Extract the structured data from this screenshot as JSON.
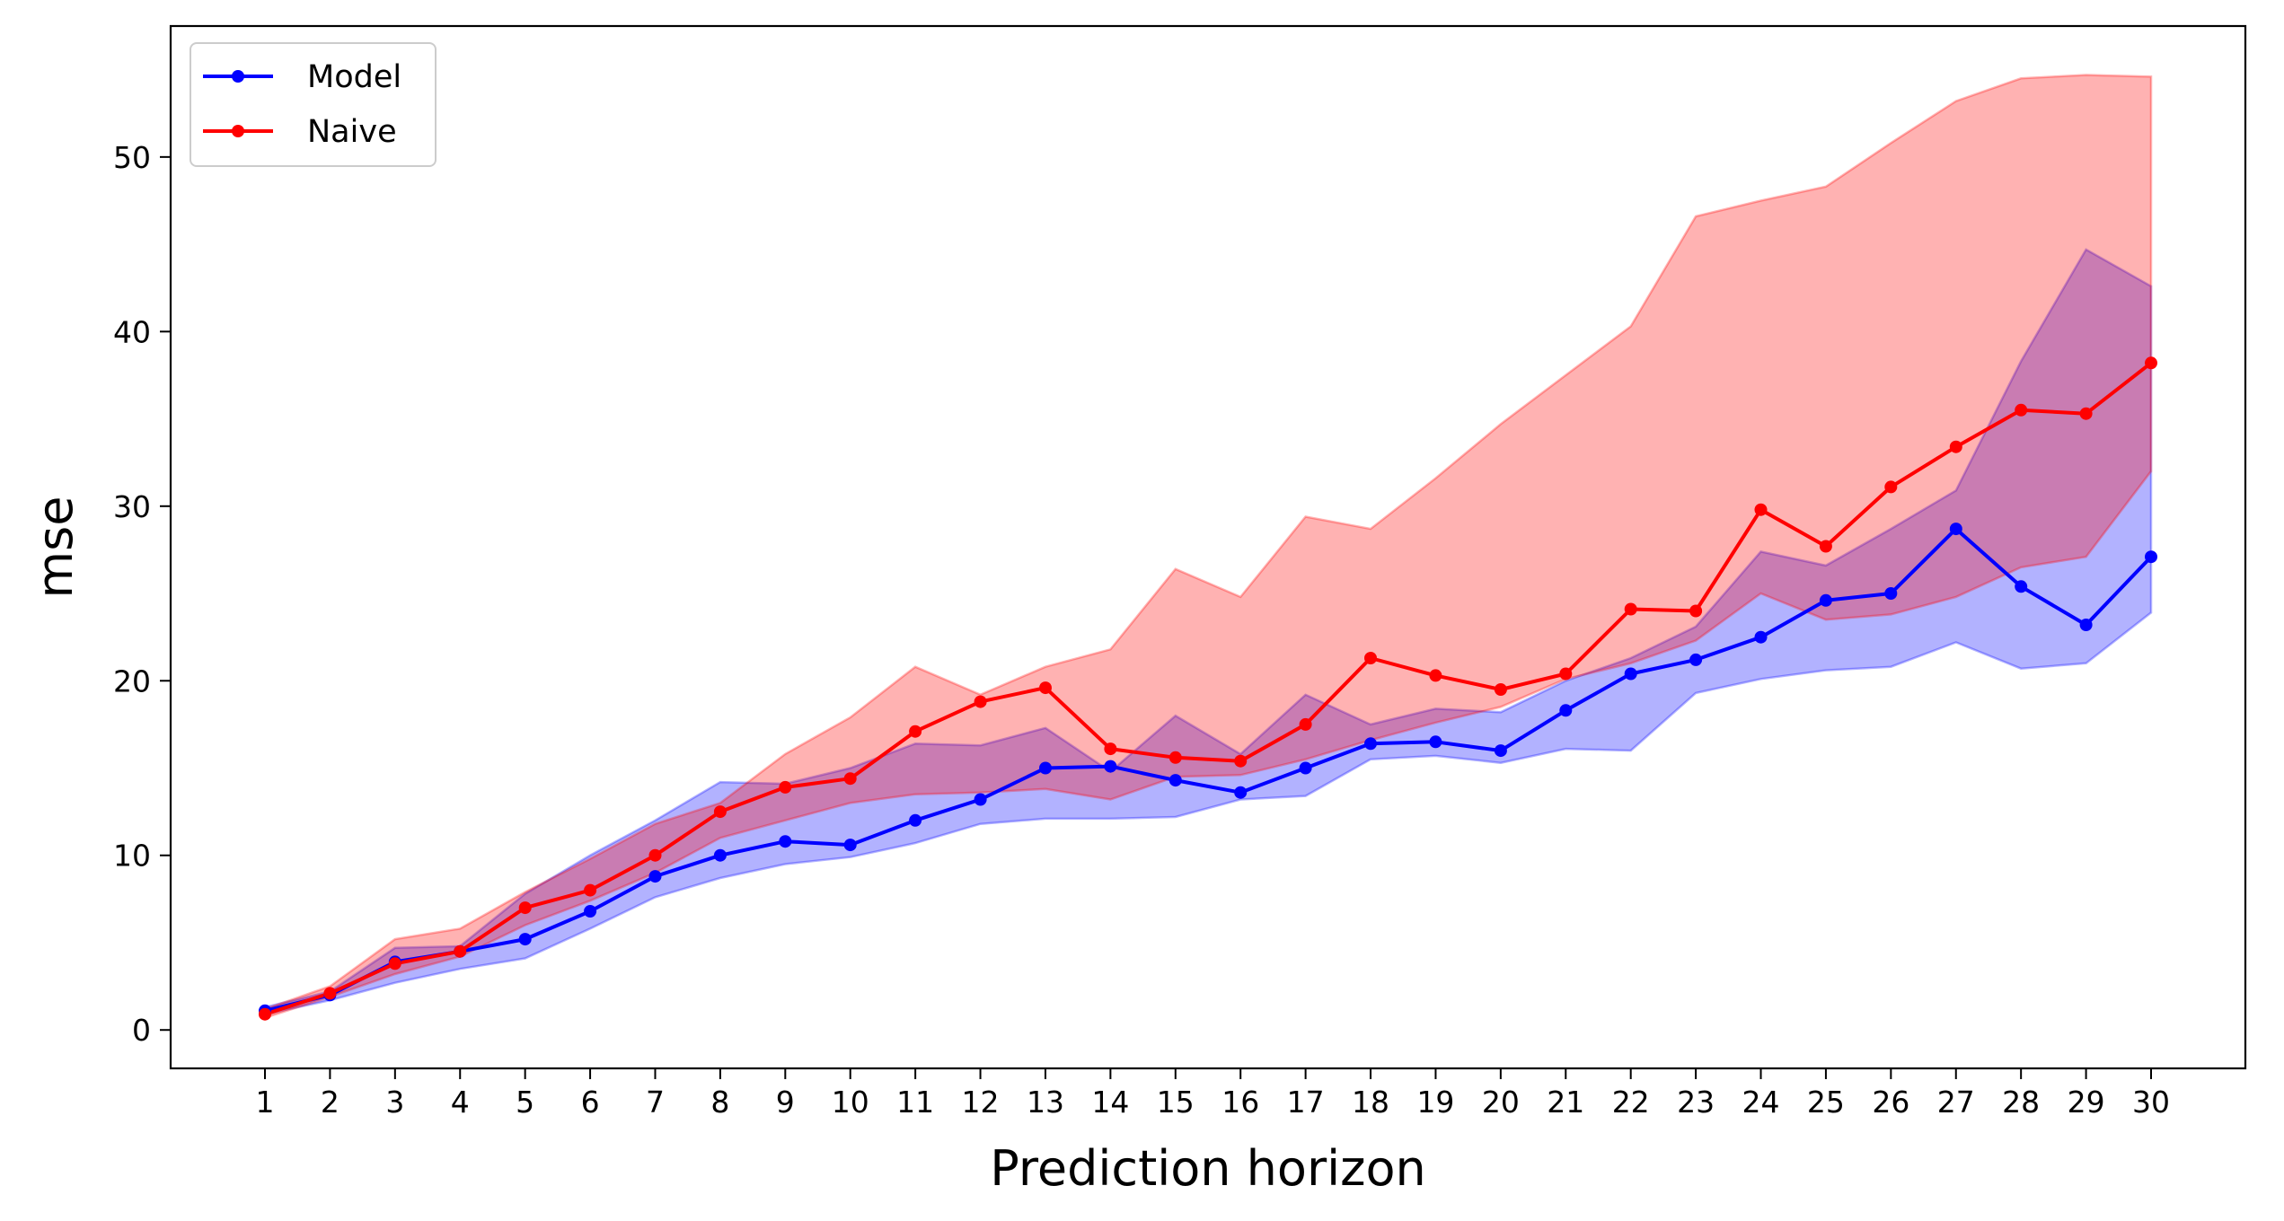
{
  "chart_data": {
    "type": "line",
    "title": "",
    "xlabel": "Prediction horizon",
    "ylabel": "mse",
    "x": [
      1,
      2,
      3,
      4,
      5,
      6,
      7,
      8,
      9,
      10,
      11,
      12,
      13,
      14,
      15,
      16,
      17,
      18,
      19,
      20,
      21,
      22,
      23,
      24,
      25,
      26,
      27,
      28,
      29,
      30
    ],
    "xlim": [
      -0.45,
      31.45
    ],
    "ylim": [
      -2.2,
      57.5
    ],
    "yticks": [
      0,
      10,
      20,
      30,
      40,
      50
    ],
    "grid": false,
    "legend_position": "top-left",
    "series": [
      {
        "name": "Model",
        "color": "#0000ff",
        "values": [
          1.1,
          2.0,
          3.9,
          4.5,
          5.2,
          6.8,
          8.8,
          10.0,
          10.8,
          10.6,
          12.0,
          13.2,
          15.0,
          15.1,
          14.3,
          13.6,
          15.0,
          16.4,
          16.5,
          16.0,
          18.3,
          20.4,
          21.2,
          22.5,
          24.6,
          25.0,
          28.7,
          25.4,
          23.2,
          27.1
        ],
        "band_lower": [
          0.9,
          1.7,
          2.7,
          3.5,
          4.1,
          5.8,
          7.6,
          8.7,
          9.5,
          9.9,
          10.7,
          11.8,
          12.1,
          12.1,
          12.2,
          13.2,
          13.4,
          15.5,
          15.7,
          15.3,
          16.1,
          16.0,
          19.3,
          20.1,
          20.6,
          20.8,
          22.2,
          20.7,
          21.0,
          23.9
        ],
        "band_upper": [
          1.3,
          2.2,
          4.7,
          4.8,
          7.8,
          10.0,
          12.0,
          14.2,
          14.1,
          15.0,
          16.4,
          16.3,
          17.3,
          14.8,
          18.0,
          15.8,
          19.2,
          17.5,
          18.4,
          18.2,
          20.0,
          21.3,
          23.1,
          27.4,
          26.6,
          28.7,
          30.9,
          38.3,
          44.7,
          42.6
        ]
      },
      {
        "name": "Naive",
        "color": "#ff0000",
        "values": [
          0.9,
          2.1,
          3.8,
          4.5,
          7.0,
          8.0,
          10.0,
          12.5,
          13.9,
          14.4,
          17.1,
          18.8,
          19.6,
          16.1,
          15.6,
          15.4,
          17.5,
          21.3,
          20.3,
          19.5,
          20.4,
          24.1,
          24.0,
          29.8,
          27.7,
          31.1,
          33.4,
          35.5,
          35.3,
          38.2
        ],
        "band_lower": [
          0.7,
          1.9,
          3.2,
          4.2,
          6.0,
          7.4,
          9.0,
          11.0,
          12.0,
          13.0,
          13.5,
          13.6,
          13.8,
          13.2,
          14.5,
          14.6,
          15.5,
          16.6,
          17.6,
          18.5,
          20.1,
          21.0,
          22.3,
          25.0,
          23.5,
          23.8,
          24.8,
          26.5,
          27.1,
          32.0
        ],
        "band_upper": [
          1.2,
          2.5,
          5.2,
          5.8,
          7.9,
          9.8,
          11.8,
          13.0,
          15.8,
          17.9,
          20.8,
          19.2,
          20.8,
          21.8,
          26.4,
          24.8,
          29.4,
          28.7,
          31.6,
          34.7,
          37.5,
          40.3,
          46.6,
          47.5,
          48.3,
          50.8,
          53.2,
          54.5,
          54.7,
          54.6
        ]
      }
    ]
  }
}
